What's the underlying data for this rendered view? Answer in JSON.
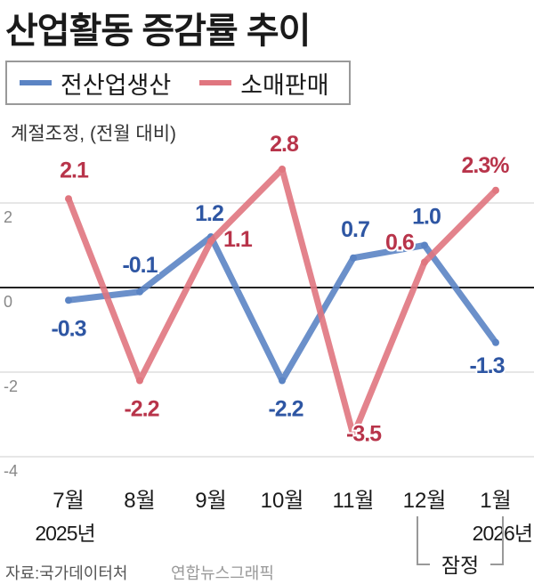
{
  "title": "산업활동 증감률 추이",
  "unit_label": "계절조정, (전월 대비)",
  "source": "자료:국가데이터처",
  "credit": "연합뉴스그래픽",
  "colors": {
    "industrial": "#5b84c4",
    "retail": "#e0767f",
    "industrial_text": "#2e56a3",
    "retail_text": "#b8344a",
    "baseline": "#222222",
    "grid": "#cccccc"
  },
  "chart_data": {
    "type": "line",
    "categories": [
      "7월",
      "8월",
      "9월",
      "10월",
      "11월",
      "12월",
      "1월"
    ],
    "year_labels": [
      {
        "index": 0,
        "text": "2025년"
      },
      {
        "index": 6,
        "text": "2026년"
      }
    ],
    "preliminary_label": "잠정",
    "preliminary_indices": [
      5,
      6
    ],
    "ylim": [
      -4,
      2.8
    ],
    "yticks": [
      2,
      0,
      -2,
      -4
    ],
    "ytick_labels": [
      "2",
      "0",
      "-2",
      "-4"
    ],
    "grid": true,
    "legend_position": "top-left",
    "series": [
      {
        "name": "전산업생산",
        "color": "#5b84c4",
        "text_color": "#2e56a3",
        "values": [
          -0.3,
          -0.1,
          1.2,
          -2.2,
          0.7,
          1.0,
          -1.3
        ],
        "labels": [
          "-0.3",
          "-0.1",
          "1.2",
          "-2.2",
          "0.7",
          "1.0",
          "-1.3"
        ]
      },
      {
        "name": "소매판매",
        "color": "#e0767f",
        "text_color": "#b8344a",
        "values": [
          2.1,
          -2.2,
          1.1,
          2.8,
          -3.5,
          0.6,
          2.3
        ],
        "labels": [
          "2.1",
          "-2.2",
          "1.1",
          "2.8",
          "-3.5",
          "0.6",
          "2.3%"
        ]
      }
    ]
  }
}
